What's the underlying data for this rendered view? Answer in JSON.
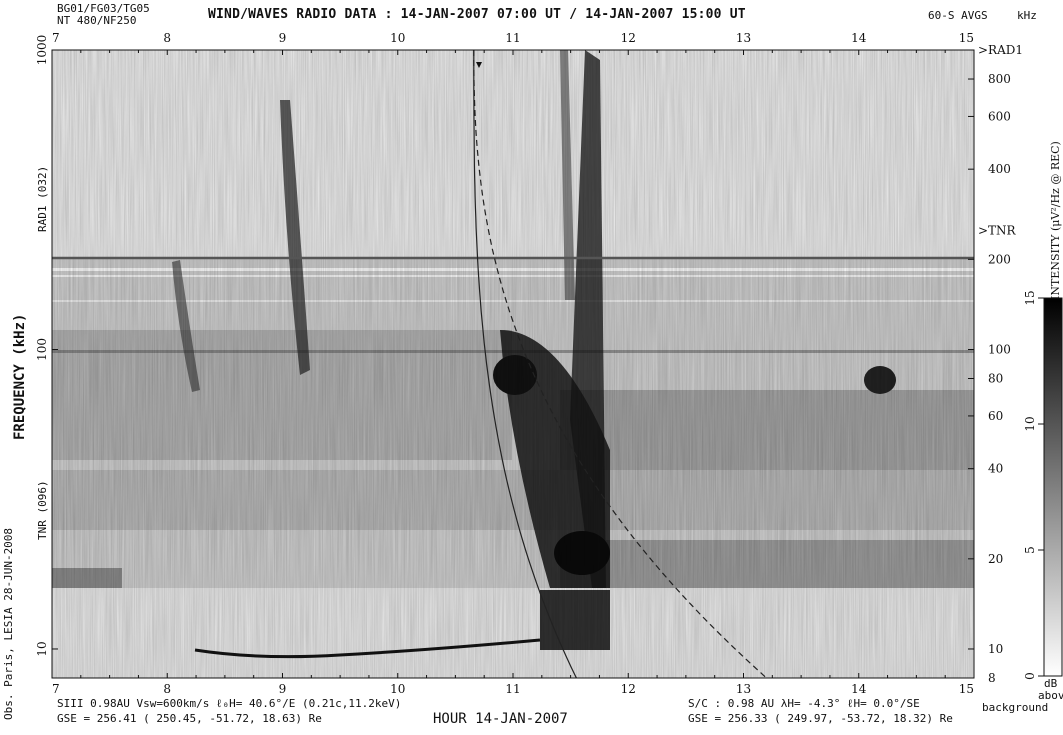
{
  "header": {
    "top_left_line1": "BG01/FG03/TG05",
    "top_left_line2": "NT 480/NF250",
    "title": "WIND/WAVES RADIO DATA : 14-JAN-2007 07:00 UT / 14-JAN-2007 15:00 UT",
    "avgs": "60-S AVGS",
    "unit_khz": "kHz"
  },
  "left_labels": {
    "frequency": "FREQUENCY (kHz)",
    "rad1_band": "RAD1 (032)",
    "tnr_band": "TNR (096)",
    "credit": "Obs. Paris, LESIA 28-JUN-2008"
  },
  "footer": {
    "left_line1": "SIII 0.98AU Vsw=600km/s ℓ₀H=  40.6°/E (0.21c,11.2keV)",
    "left_line2": "GSE = 256.41 ( 250.45, -51.72,  18.63) Re",
    "center": "HOUR 14-JAN-2007",
    "right_line1": "S/C : 0.98 AU λH= -4.3° ℓH=   0.0°/SE",
    "right_line2": "GSE = 256.33 ( 249.97, -53.72,  18.32) Re"
  },
  "colorbar": {
    "title": "INTENSITY (μV²/Hz @ REC)",
    "ticks": [
      "0",
      "5",
      "10",
      "15"
    ],
    "unit_lines": [
      "dB",
      "above",
      "background"
    ]
  },
  "chart_data": {
    "type": "heatmap",
    "title": "WIND/WAVES RADIO DATA : 14-JAN-2007 07:00 UT / 14-JAN-2007 15:00 UT",
    "xlabel": "HOUR 14-JAN-2007",
    "ylabel": "FREQUENCY (kHz)",
    "x_ticks": [
      "7",
      "8",
      "9",
      "10",
      "11",
      "12",
      "13",
      "14",
      "15"
    ],
    "xlim": [
      7,
      15
    ],
    "y_scale": "log",
    "ylim": [
      8,
      1000
    ],
    "left_y_ticks": [
      "1000",
      "100",
      "10"
    ],
    "right_y_ticks": [
      "800",
      "600",
      "400",
      "200",
      "100",
      "80",
      "60",
      "40",
      "20",
      "10",
      "8"
    ],
    "band_markers": [
      ">RAD1",
      ">TNR"
    ],
    "tnr_boundary_khz": 250,
    "colorscale": "grayscale",
    "intensity_range_db": [
      0,
      15
    ],
    "events": [
      {
        "type": "type III burst",
        "start_hour": 11.55,
        "peak_khz": 1000
      },
      {
        "type": "type III burst",
        "start_hour": 11.8,
        "peak_khz": 1000
      },
      {
        "type": "type II-like drift",
        "start_hour": 10.7,
        "end_hour": 11.8
      }
    ],
    "plasma_line_khz": 20,
    "curves": [
      {
        "style": "solid",
        "start_hour": 10.66,
        "start_khz": 1000,
        "end_hour": 11.55,
        "end_khz": 8
      },
      {
        "style": "dashed",
        "start_hour": 10.66,
        "start_khz": 1000,
        "end_hour": 13.2,
        "end_khz": 8
      }
    ]
  }
}
